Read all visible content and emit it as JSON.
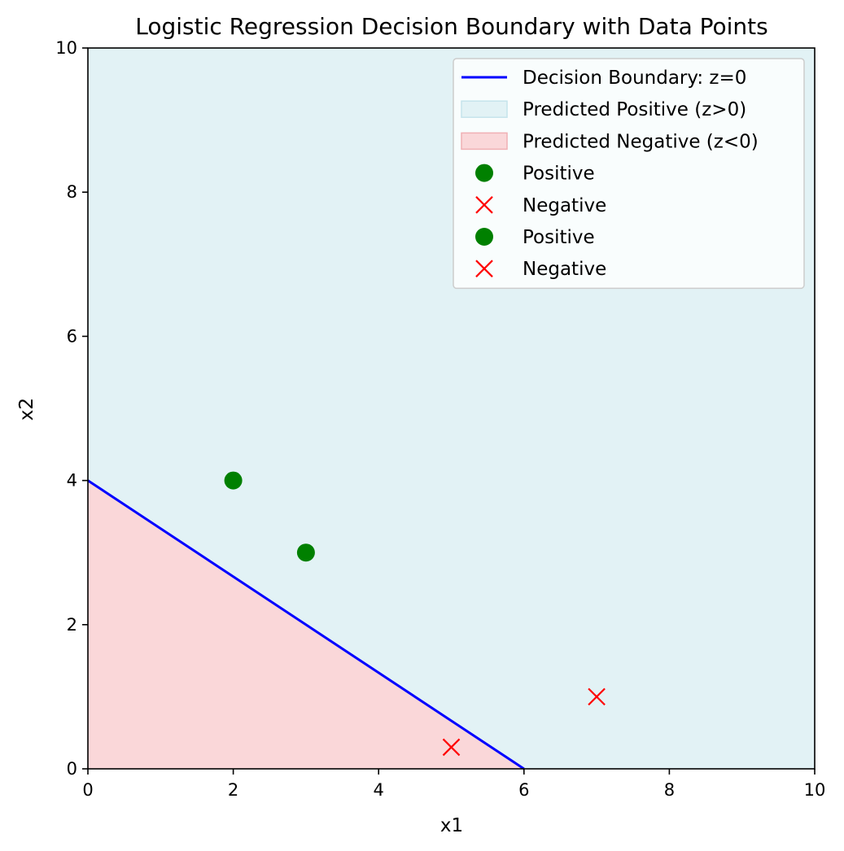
{
  "chart_data": {
    "type": "line",
    "title": "Logistic Regression Decision Boundary with Data Points",
    "xlabel": "x1",
    "ylabel": "x2",
    "xlim": [
      0,
      10
    ],
    "ylim": [
      0,
      10
    ],
    "xticks": [
      0,
      2,
      4,
      6,
      8,
      10
    ],
    "yticks": [
      0,
      2,
      4,
      6,
      8,
      10
    ],
    "grid": false,
    "legend_position": "top-right",
    "regions": [
      {
        "name": "Predicted Positive (z>0)",
        "color": "#e2f2f5",
        "polygon": [
          [
            0,
            4
          ],
          [
            6,
            0
          ],
          [
            10,
            0
          ],
          [
            10,
            10
          ],
          [
            0,
            10
          ]
        ]
      },
      {
        "name": "Predicted Negative (z<0)",
        "color": "#fad7d9",
        "polygon": [
          [
            0,
            0
          ],
          [
            0,
            4
          ],
          [
            6,
            0
          ]
        ]
      }
    ],
    "boundary": {
      "name": "Decision Boundary: z=0",
      "color": "#0000ff",
      "x": [
        0,
        6
      ],
      "y": [
        4,
        0
      ]
    },
    "series": [
      {
        "name": "Positive",
        "marker": "circle",
        "color": "#008000",
        "points": [
          [
            2,
            4
          ],
          [
            3,
            3
          ]
        ]
      },
      {
        "name": "Negative",
        "marker": "x",
        "color": "#ff0000",
        "points": [
          [
            5,
            0.3
          ],
          [
            7,
            1
          ]
        ]
      }
    ],
    "legend": [
      {
        "label": "Decision Boundary: z=0",
        "kind": "line",
        "color": "#0000ff"
      },
      {
        "label": "Predicted Positive (z>0)",
        "kind": "patch",
        "color": "#e2f2f5",
        "edge": "#c6e4ec"
      },
      {
        "label": "Predicted Negative (z<0)",
        "kind": "patch",
        "color": "#fad7d9",
        "edge": "#f0b0b4"
      },
      {
        "label": "Positive",
        "kind": "circle",
        "color": "#008000"
      },
      {
        "label": "Negative",
        "kind": "x",
        "color": "#ff0000"
      },
      {
        "label": "Positive",
        "kind": "circle",
        "color": "#008000"
      },
      {
        "label": "Negative",
        "kind": "x",
        "color": "#ff0000"
      }
    ]
  }
}
